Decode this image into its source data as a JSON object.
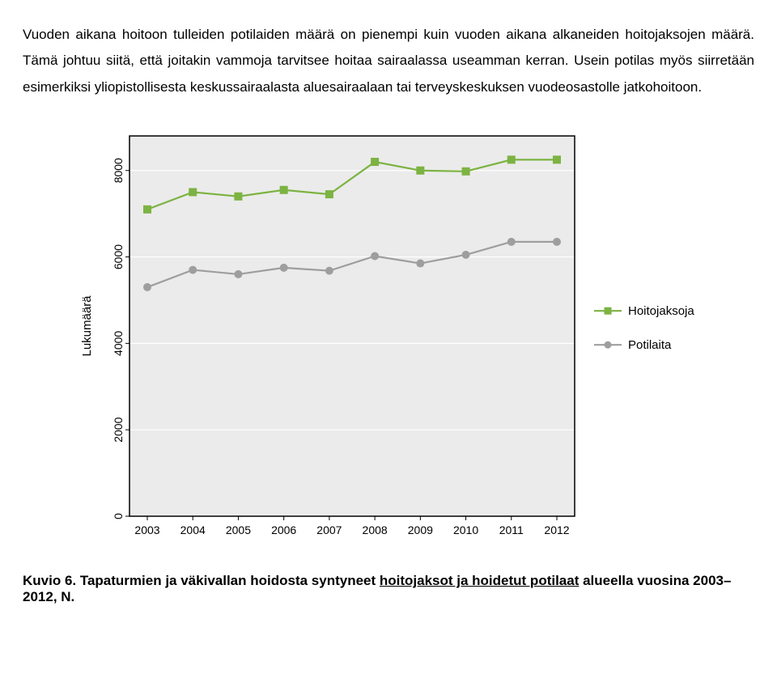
{
  "paragraph": "Vuoden aikana hoitoon tulleiden potilaiden määrä on pienempi kuin vuoden aikana alkaneiden hoitojaksojen määrä. Tämä johtuu siitä, että joitakin vammoja tarvitsee hoitaa sairaalassa useamman kerran. Usein potilas myös siirretään esimerkiksi yliopistollisesta keskussairaalasta aluesairaalaan tai terveyskeskuksen vuodeosastolle jatkohoitoon.",
  "caption_prefix": "Kuvio 6. Tapaturmien ja väkivallan hoidosta syntyneet ",
  "caption_u1": "hoitojaksot ja hoidetut potilaat",
  "caption_mid": " alueella vuosina 2003–2012, N.",
  "chart": {
    "type": "line",
    "ylabel": "Lukumäärä",
    "ylim": [
      0,
      8800
    ],
    "yticks": [
      0,
      2000,
      4000,
      6000,
      8000
    ],
    "xticks": [
      "2003",
      "2004",
      "2005",
      "2006",
      "2007",
      "2008",
      "2009",
      "2010",
      "2011",
      "2012"
    ],
    "xvals": [
      2003,
      2004,
      2005,
      2006,
      2007,
      2008,
      2009,
      2010,
      2011,
      2012
    ],
    "background_color": "#ebebeb",
    "gridline_color": "#ffffff",
    "border_color": "#000000",
    "tick_font_size": 14,
    "axis_label_font_size": 15,
    "legend_font_size": 15,
    "series": [
      {
        "name": "Hoitojaksoja",
        "color": "#7cb342",
        "marker": "square",
        "marker_size": 9,
        "line_width": 2.2,
        "values": [
          7100,
          7500,
          7400,
          7550,
          7450,
          8200,
          8000,
          7980,
          8250,
          8250
        ]
      },
      {
        "name": "Potilaita",
        "color": "#9e9e9e",
        "marker": "circle",
        "marker_size": 9,
        "line_width": 2.2,
        "values": [
          5300,
          5700,
          5600,
          5750,
          5680,
          6020,
          5850,
          6050,
          6350,
          6350
        ]
      }
    ]
  }
}
